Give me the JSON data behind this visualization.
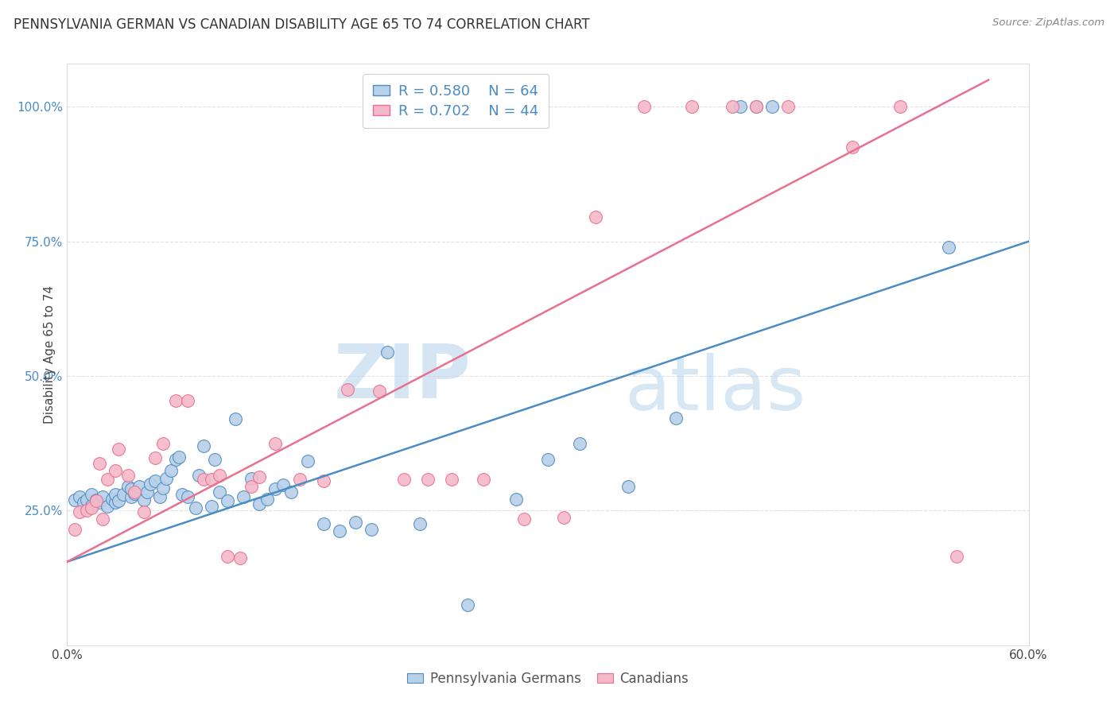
{
  "title": "PENNSYLVANIA GERMAN VS CANADIAN DISABILITY AGE 65 TO 74 CORRELATION CHART",
  "source": "Source: ZipAtlas.com",
  "ylabel": "Disability Age 65 to 74",
  "xmin": 0.0,
  "xmax": 0.6,
  "ymin": 0.0,
  "ymax": 1.08,
  "x_tick_labels": [
    "0.0%",
    "",
    "",
    "",
    "",
    "",
    "60.0%"
  ],
  "x_tick_vals": [
    0.0,
    0.1,
    0.2,
    0.3,
    0.4,
    0.5,
    0.6
  ],
  "y_tick_labels": [
    "25.0%",
    "50.0%",
    "75.0%",
    "100.0%"
  ],
  "y_tick_vals": [
    0.25,
    0.5,
    0.75,
    1.0
  ],
  "blue_R": 0.58,
  "blue_N": 64,
  "pink_R": 0.702,
  "pink_N": 44,
  "blue_color": "#b8d0e8",
  "pink_color": "#f5b8c8",
  "blue_line_color": "#4a8cc4",
  "pink_line_color": "#e87090",
  "legend_label_blue": "Pennsylvania Germans",
  "legend_label_pink": "Canadians",
  "blue_scatter_x": [
    0.005,
    0.008,
    0.01,
    0.012,
    0.015,
    0.015,
    0.018,
    0.02,
    0.022,
    0.025,
    0.028,
    0.03,
    0.03,
    0.032,
    0.035,
    0.038,
    0.04,
    0.04,
    0.042,
    0.045,
    0.048,
    0.05,
    0.052,
    0.055,
    0.058,
    0.06,
    0.062,
    0.065,
    0.068,
    0.07,
    0.072,
    0.075,
    0.08,
    0.082,
    0.085,
    0.09,
    0.092,
    0.095,
    0.1,
    0.105,
    0.11,
    0.115,
    0.12,
    0.125,
    0.13,
    0.135,
    0.14,
    0.15,
    0.16,
    0.17,
    0.18,
    0.19,
    0.2,
    0.22,
    0.25,
    0.28,
    0.3,
    0.32,
    0.35,
    0.38,
    0.42,
    0.43,
    0.44,
    0.55
  ],
  "blue_scatter_y": [
    0.27,
    0.275,
    0.265,
    0.27,
    0.26,
    0.28,
    0.27,
    0.265,
    0.275,
    0.258,
    0.272,
    0.265,
    0.28,
    0.268,
    0.28,
    0.295,
    0.275,
    0.29,
    0.282,
    0.295,
    0.27,
    0.285,
    0.3,
    0.305,
    0.275,
    0.292,
    0.31,
    0.325,
    0.345,
    0.35,
    0.28,
    0.275,
    0.255,
    0.315,
    0.37,
    0.258,
    0.345,
    0.285,
    0.268,
    0.42,
    0.275,
    0.31,
    0.262,
    0.272,
    0.29,
    0.298,
    0.285,
    0.342,
    0.225,
    0.212,
    0.228,
    0.215,
    0.545,
    0.225,
    0.075,
    0.272,
    0.345,
    0.375,
    0.295,
    0.422,
    1.0,
    1.0,
    1.0,
    0.74
  ],
  "pink_scatter_x": [
    0.005,
    0.008,
    0.012,
    0.015,
    0.018,
    0.02,
    0.022,
    0.025,
    0.03,
    0.032,
    0.038,
    0.042,
    0.048,
    0.055,
    0.06,
    0.068,
    0.075,
    0.085,
    0.09,
    0.095,
    0.1,
    0.108,
    0.115,
    0.12,
    0.13,
    0.145,
    0.16,
    0.175,
    0.195,
    0.21,
    0.225,
    0.24,
    0.26,
    0.285,
    0.31,
    0.33,
    0.36,
    0.39,
    0.415,
    0.43,
    0.45,
    0.49,
    0.52,
    0.555
  ],
  "pink_scatter_y": [
    0.215,
    0.248,
    0.25,
    0.255,
    0.268,
    0.338,
    0.235,
    0.308,
    0.325,
    0.365,
    0.315,
    0.285,
    0.248,
    0.348,
    0.375,
    0.455,
    0.455,
    0.308,
    0.308,
    0.315,
    0.165,
    0.162,
    0.295,
    0.312,
    0.375,
    0.308,
    0.305,
    0.475,
    0.472,
    0.308,
    0.308,
    0.308,
    0.308,
    0.235,
    0.238,
    0.795,
    1.0,
    1.0,
    1.0,
    1.0,
    1.0,
    0.925,
    1.0,
    0.165
  ],
  "blue_line_x": [
    0.0,
    0.6
  ],
  "blue_line_y": [
    0.155,
    0.75
  ],
  "pink_line_x": [
    0.0,
    0.575
  ],
  "pink_line_y": [
    0.155,
    1.05
  ],
  "watermark_zip": "ZIP",
  "watermark_atlas": "atlas",
  "background_color": "#ffffff",
  "grid_color": "#dddddd"
}
